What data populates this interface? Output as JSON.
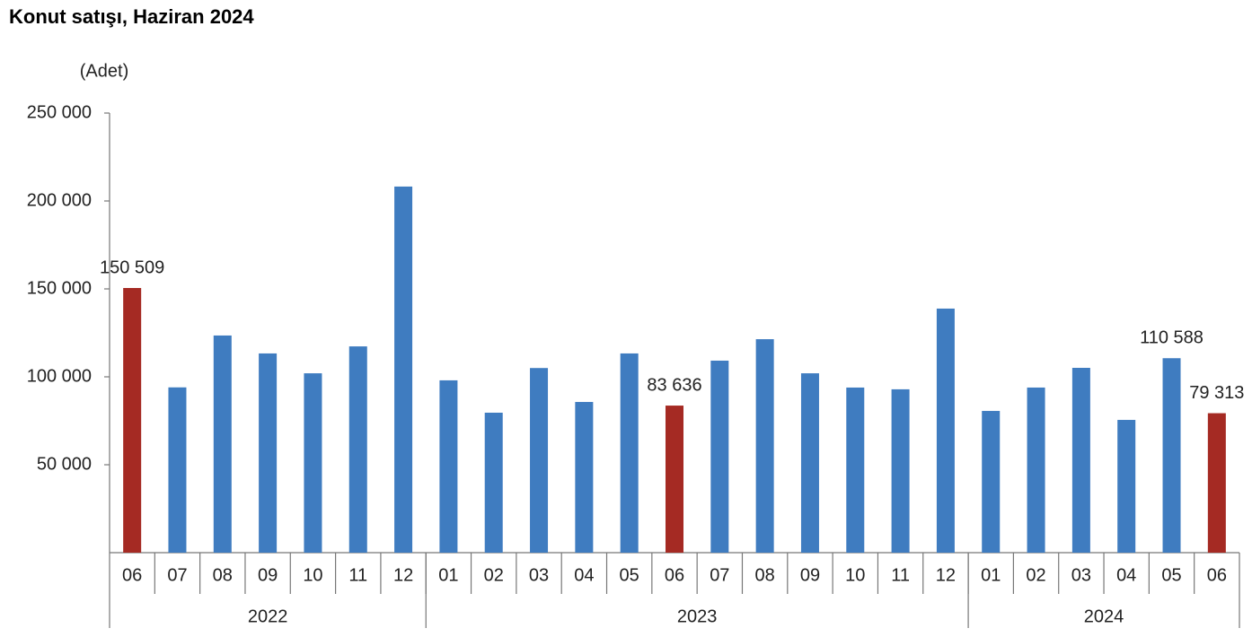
{
  "chart_data": {
    "type": "bar",
    "title": "Konut satışı, Haziran 2024",
    "y_axis_label": "(Adet)",
    "categories": [
      "06",
      "07",
      "08",
      "09",
      "10",
      "11",
      "12",
      "01",
      "02",
      "03",
      "04",
      "05",
      "06",
      "07",
      "08",
      "09",
      "10",
      "11",
      "12",
      "01",
      "02",
      "03",
      "04",
      "05",
      "06"
    ],
    "groups": [
      {
        "label": "2022",
        "count": 7
      },
      {
        "label": "2023",
        "count": 12
      },
      {
        "label": "2024",
        "count": 6
      }
    ],
    "values": [
      150509,
      94000,
      123500,
      113300,
      102000,
      117300,
      208200,
      98000,
      79600,
      105000,
      85700,
      113300,
      83636,
      109200,
      121400,
      102000,
      93900,
      92900,
      138800,
      80600,
      93900,
      105100,
      75500,
      110588,
      79313
    ],
    "value_labels": [
      "150 509",
      null,
      null,
      null,
      null,
      null,
      null,
      null,
      null,
      null,
      null,
      null,
      "83 636",
      null,
      null,
      null,
      null,
      null,
      null,
      null,
      null,
      null,
      null,
      "110 588",
      "79 313"
    ],
    "colors": [
      "#a52a23",
      "#3f7cc0",
      "#3f7cc0",
      "#3f7cc0",
      "#3f7cc0",
      "#3f7cc0",
      "#3f7cc0",
      "#3f7cc0",
      "#3f7cc0",
      "#3f7cc0",
      "#3f7cc0",
      "#3f7cc0",
      "#a52a23",
      "#3f7cc0",
      "#3f7cc0",
      "#3f7cc0",
      "#3f7cc0",
      "#3f7cc0",
      "#3f7cc0",
      "#3f7cc0",
      "#3f7cc0",
      "#3f7cc0",
      "#3f7cc0",
      "#3f7cc0",
      "#a52a23"
    ],
    "ylim": [
      0,
      250000
    ],
    "yticks": [
      {
        "value": 50000,
        "label": "50 000"
      },
      {
        "value": 100000,
        "label": "100 000"
      },
      {
        "value": 150000,
        "label": "150 000"
      },
      {
        "value": 200000,
        "label": "200 000"
      },
      {
        "value": 250000,
        "label": "250 000"
      }
    ],
    "grid": false
  }
}
